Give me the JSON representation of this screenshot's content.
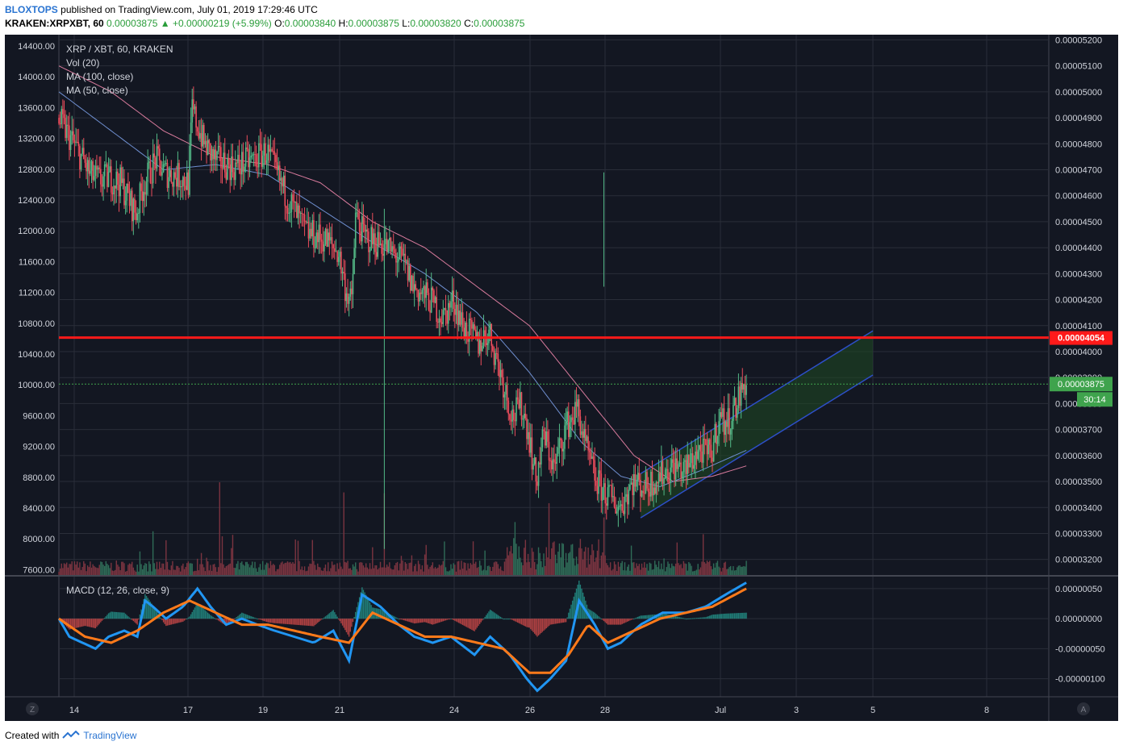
{
  "header": {
    "author": "BLOXTOPS",
    "published": "published on TradingView.com, July 01, 2019 17:29:46 UTC",
    "symbol": "KRAKEN:XRPXBT, 60",
    "open_value": "0.00003875",
    "change": "+0.00000219 (+5.99%)",
    "o_label": "O:",
    "o_value": "0.00003840",
    "h_label": "H:",
    "h_value": "0.00003875",
    "l_label": "L:",
    "l_value": "0.00003820",
    "c_label": "C:",
    "c_value": "0.00003875"
  },
  "legend": {
    "title": "XRP / XBT, 60, KRAKEN",
    "vol": "Vol (20)",
    "ma100": "MA (100, close)",
    "ma50": "MA (50, close)",
    "macd": "MACD (12, 26, close, 9)"
  },
  "price_badges": {
    "resistance": "0.00004054",
    "last": "0.00003875",
    "countdown": "30:14"
  },
  "footer": {
    "created": "Created with",
    "brand": "TradingView"
  },
  "colors": {
    "background": "#131722",
    "grid": "#2a2e39",
    "up": "#53b987",
    "down": "#eb4d5c",
    "ma100": "#d97b9d",
    "ma50": "#6f8fd0",
    "macd": "#2196f3",
    "signal": "#ff7a1a",
    "resistance": "#ff1a1a",
    "channel": "#2d4fc8",
    "last_badge": "#3fa34d"
  },
  "chart_data": {
    "type": "candlestick",
    "title": "XRP / XBT, 60, KRAKEN",
    "x_ticks": [
      "14",
      "17",
      "19",
      "21",
      "24",
      "26",
      "28",
      "Jul",
      "3",
      "5",
      "8"
    ],
    "left_axis_ticks": [
      "14400.00",
      "14000.00",
      "13600.00",
      "13200.00",
      "12800.00",
      "12400.00",
      "12000.00",
      "11600.00",
      "11200.00",
      "10800.00",
      "10400.00",
      "10000.00",
      "9600.00",
      "9200.00",
      "8800.00",
      "8400.00",
      "8000.00",
      "7600.00"
    ],
    "right_axis_ticks": [
      "0.00005200",
      "0.00005100",
      "0.00005000",
      "0.00004900",
      "0.00004800",
      "0.00004700",
      "0.00004600",
      "0.00004500",
      "0.00004400",
      "0.00004300",
      "0.00004200",
      "0.00004100",
      "0.00004000",
      "0.00003900",
      "0.00003800",
      "0.00003700",
      "0.00003600",
      "0.00003500",
      "0.00003400",
      "0.00003300",
      "0.00003200"
    ],
    "macd_axis_ticks": [
      "0.00000050",
      "0.00000000",
      "-0.00000050",
      "-0.00000100"
    ],
    "ylim_price": [
      3.14e-05,
      5.22e-05
    ],
    "ylim_macd": [
      -1.3e-06,
      7e-07
    ],
    "resistance_level": 4.054e-05,
    "last_close": 3.875e-05,
    "channel": {
      "start": [
        "28",
        3.36e-05
      ],
      "end": [
        "5",
        3.91e-05
      ],
      "width": 1.7e-06
    },
    "price_path": [
      [
        0,
        4.9e-05
      ],
      [
        10,
        4.82e-05
      ],
      [
        18,
        4.75e-05
      ],
      [
        25,
        4.68e-05
      ],
      [
        32,
        4.66e-05
      ],
      [
        40,
        4.67e-05
      ],
      [
        48,
        4.65e-05
      ],
      [
        60,
        4.53e-05
      ],
      [
        65,
        4.63e-05
      ],
      [
        75,
        4.74e-05
      ],
      [
        82,
        4.69e-05
      ],
      [
        95,
        4.67e-05
      ],
      [
        100,
        4.65e-05
      ],
      [
        103,
        4.93e-05
      ],
      [
        112,
        4.8e-05
      ],
      [
        120,
        4.74e-05
      ],
      [
        135,
        4.71e-05
      ],
      [
        150,
        4.74e-05
      ],
      [
        160,
        4.77e-05
      ],
      [
        175,
        4.6e-05
      ],
      [
        190,
        4.46e-05
      ],
      [
        205,
        4.43e-05
      ],
      [
        215,
        4.38e-05
      ],
      [
        220,
        4.25e-05
      ],
      [
        225,
        4.18e-05
      ],
      [
        228,
        4.52e-05
      ],
      [
        235,
        4.44e-05
      ],
      [
        250,
        4.41e-05
      ],
      [
        265,
        4.34e-05
      ],
      [
        272,
        4.25e-05
      ],
      [
        285,
        4.2e-05
      ],
      [
        295,
        4.13e-05
      ],
      [
        303,
        4.2e-05
      ],
      [
        310,
        4.1e-05
      ],
      [
        322,
        4.03e-05
      ],
      [
        330,
        4.08e-05
      ],
      [
        340,
        3.9e-05
      ],
      [
        348,
        3.75e-05
      ],
      [
        355,
        3.79e-05
      ],
      [
        360,
        3.7e-05
      ],
      [
        366,
        3.5e-05
      ],
      [
        372,
        3.68e-05
      ],
      [
        380,
        3.55e-05
      ],
      [
        388,
        3.7e-05
      ],
      [
        394,
        3.75e-05
      ],
      [
        398,
        3.78e-05
      ],
      [
        404,
        3.63e-05
      ],
      [
        412,
        3.5e-05
      ],
      [
        420,
        3.45e-05
      ],
      [
        430,
        3.4e-05
      ],
      [
        440,
        3.5e-05
      ],
      [
        450,
        3.48e-05
      ],
      [
        460,
        3.52e-05
      ],
      [
        472,
        3.56e-05
      ],
      [
        480,
        3.54e-05
      ],
      [
        490,
        3.62e-05
      ],
      [
        500,
        3.6e-05
      ],
      [
        506,
        3.75e-05
      ],
      [
        512,
        3.72e-05
      ],
      [
        518,
        3.78e-05
      ],
      [
        526,
        3.88e-05
      ]
    ],
    "ma100_path": [
      [
        0,
        5.1e-05
      ],
      [
        40,
        5e-05
      ],
      [
        80,
        4.85e-05
      ],
      [
        120,
        4.75e-05
      ],
      [
        160,
        4.72e-05
      ],
      [
        200,
        4.65e-05
      ],
      [
        240,
        4.5e-05
      ],
      [
        280,
        4.4e-05
      ],
      [
        320,
        4.25e-05
      ],
      [
        360,
        4.1e-05
      ],
      [
        400,
        3.85e-05
      ],
      [
        440,
        3.6e-05
      ],
      [
        470,
        3.5e-05
      ],
      [
        500,
        3.52e-05
      ],
      [
        526,
        3.56e-05
      ]
    ],
    "ma50_path": [
      [
        0,
        5e-05
      ],
      [
        40,
        4.85e-05
      ],
      [
        80,
        4.7e-05
      ],
      [
        120,
        4.72e-05
      ],
      [
        160,
        4.68e-05
      ],
      [
        200,
        4.55e-05
      ],
      [
        240,
        4.42e-05
      ],
      [
        280,
        4.3e-05
      ],
      [
        320,
        4.15e-05
      ],
      [
        360,
        3.92e-05
      ],
      [
        400,
        3.65e-05
      ],
      [
        430,
        3.52e-05
      ],
      [
        460,
        3.48e-05
      ],
      [
        490,
        3.54e-05
      ],
      [
        526,
        3.62e-05
      ]
    ],
    "macd_path": [
      [
        0,
        0.0
      ],
      [
        8,
        -3e-07
      ],
      [
        18,
        -4e-07
      ],
      [
        28,
        -5e-07
      ],
      [
        38,
        -3e-07
      ],
      [
        50,
        -2e-07
      ],
      [
        60,
        -3e-07
      ],
      [
        66,
        3e-07
      ],
      [
        72,
        2e-07
      ],
      [
        82,
        0.0
      ],
      [
        95,
        2e-07
      ],
      [
        106,
        5e-07
      ],
      [
        116,
        2e-07
      ],
      [
        128,
        -1e-07
      ],
      [
        140,
        0.0
      ],
      [
        152,
        -1e-07
      ],
      [
        165,
        -2e-07
      ],
      [
        180,
        -3e-07
      ],
      [
        195,
        -4e-07
      ],
      [
        210,
        -2e-07
      ],
      [
        222,
        -7e-07
      ],
      [
        232,
        4e-07
      ],
      [
        246,
        2e-07
      ],
      [
        260,
        -1e-07
      ],
      [
        272,
        -3e-07
      ],
      [
        286,
        -4e-07
      ],
      [
        300,
        -3e-07
      ],
      [
        318,
        -6e-07
      ],
      [
        330,
        -3e-07
      ],
      [
        345,
        -6e-07
      ],
      [
        358,
        -1e-06
      ],
      [
        366,
        -1.2e-06
      ],
      [
        376,
        -1e-06
      ],
      [
        388,
        -7e-07
      ],
      [
        398,
        3e-07
      ],
      [
        410,
        -1e-07
      ],
      [
        420,
        -5e-07
      ],
      [
        430,
        -4e-07
      ],
      [
        445,
        -1e-07
      ],
      [
        462,
        1e-07
      ],
      [
        480,
        1e-07
      ],
      [
        495,
        2e-07
      ],
      [
        510,
        4e-07
      ],
      [
        526,
        6e-07
      ]
    ],
    "signal_path": [
      [
        0,
        0.0
      ],
      [
        20,
        -3e-07
      ],
      [
        40,
        -4e-07
      ],
      [
        60,
        -2e-07
      ],
      [
        80,
        1e-07
      ],
      [
        100,
        3e-07
      ],
      [
        120,
        1e-07
      ],
      [
        140,
        -1e-07
      ],
      [
        160,
        -1e-07
      ],
      [
        180,
        -2e-07
      ],
      [
        200,
        -3e-07
      ],
      [
        222,
        -4e-07
      ],
      [
        240,
        1e-07
      ],
      [
        260,
        -1e-07
      ],
      [
        280,
        -3e-07
      ],
      [
        300,
        -3e-07
      ],
      [
        320,
        -4e-07
      ],
      [
        340,
        -5e-07
      ],
      [
        360,
        -9e-07
      ],
      [
        376,
        -9e-07
      ],
      [
        390,
        -6e-07
      ],
      [
        405,
        -1e-07
      ],
      [
        420,
        -4e-07
      ],
      [
        440,
        -2e-07
      ],
      [
        460,
        0.0
      ],
      [
        480,
        1e-07
      ],
      [
        500,
        2e-07
      ],
      [
        526,
        5e-07
      ]
    ]
  }
}
